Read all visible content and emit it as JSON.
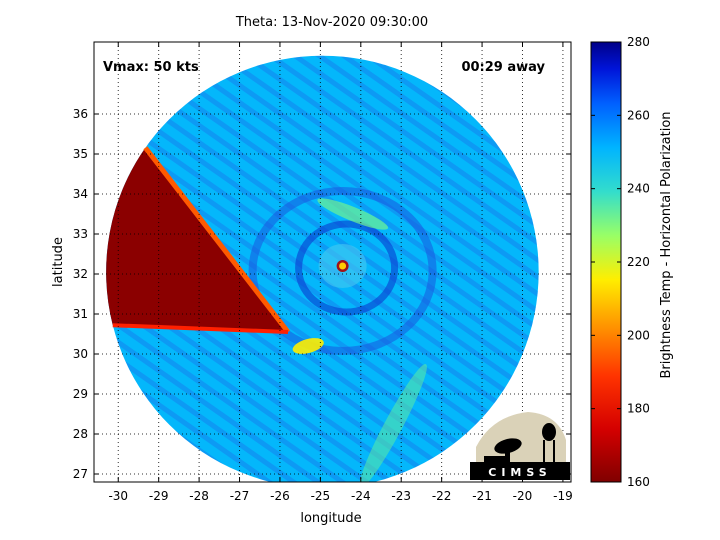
{
  "chart_data": {
    "type": "heatmap",
    "title": "Theta: 13-Nov-2020 09:30:00",
    "xlabel": "longitude",
    "ylabel": "latitude",
    "xlim": [
      -30.6,
      -18.8
    ],
    "ylim": [
      26.8,
      37.8
    ],
    "x_ticks": [
      "-30",
      "-29",
      "-28",
      "-27",
      "-26",
      "-25",
      "-24",
      "-23",
      "-22",
      "-21",
      "-20",
      "-19"
    ],
    "x_tick_values": [
      -30,
      -29,
      -28,
      -27,
      -26,
      -25,
      -24,
      -23,
      -22,
      -21,
      -20,
      -19
    ],
    "y_ticks": [
      "27",
      "28",
      "29",
      "30",
      "31",
      "32",
      "33",
      "34",
      "35",
      "36"
    ],
    "y_tick_values": [
      27,
      28,
      29,
      30,
      31,
      32,
      33,
      34,
      35,
      36
    ],
    "grid": true,
    "annotation_left": "Vmax: 50 kts",
    "annotation_right": "00:29 away",
    "colorbar": {
      "label": "Brightness Temp - Horizontal Polarization",
      "range": [
        160,
        280
      ],
      "ticks": [
        "160",
        "180",
        "200",
        "220",
        "240",
        "260",
        "280"
      ],
      "tick_values": [
        160,
        180,
        200,
        220,
        240,
        260,
        280
      ]
    },
    "swath": {
      "center_lon": -24.95,
      "center_lat": 32.05,
      "radius_deg": 5.35,
      "background_value": 250
    },
    "features": [
      {
        "name": "eye",
        "lon": -24.45,
        "lat": 32.2,
        "value": 168
      },
      {
        "name": "warm band",
        "lon": -24.2,
        "lat": 33.5,
        "value": 232
      },
      {
        "name": "warm patch",
        "lon": -25.3,
        "lat": 30.2,
        "value": 215
      },
      {
        "name": "southern rainband",
        "lon": -23.2,
        "lat": 28.2,
        "value": 234
      }
    ],
    "missing_wedge": {
      "apex_lon": -25.8,
      "apex_lat": 30.55,
      "value": 162
    }
  },
  "logo": {
    "text": "CIMSS"
  }
}
